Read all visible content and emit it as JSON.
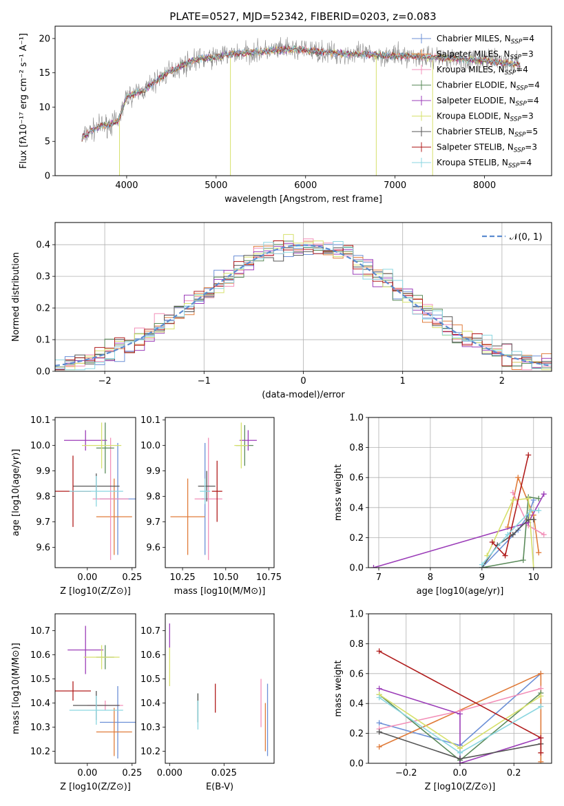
{
  "title": "PLATE=0527, MJD=52342, FIBERID=0203, z=0.083",
  "colors": [
    "#6b8fd6",
    "#e07b39",
    "#f28fb8",
    "#5a8a5a",
    "#9b3cb8",
    "#d6e06b",
    "#555555",
    "#b01c1c",
    "#8ad6e0"
  ],
  "legend": [
    "Chabrier MILES, N_SSP=4",
    "Salpeter MILES, N_SSP=3",
    "Kroupa MILES, N_SSP=4",
    "Chabrier ELODIE, N_SSP=4",
    "Salpeter ELODIE, N_SSP=4",
    "Kroupa ELODIE, N_SSP=3",
    "Chabrier STELIB, N_SSP=5",
    "Salpeter STELIB, N_SSP=3",
    "Kroupa STELIB, N_SSP=4"
  ],
  "chart_data": [
    {
      "id": "spectrum",
      "type": "line",
      "title": "PLATE=0527, MJD=52342, FIBERID=0203, z=0.083",
      "xlabel": "wavelength [Angstrom, rest frame]",
      "ylabel": "Flux [fλ10⁻¹⁷ erg cm⁻² s⁻¹ A⁻¹]",
      "xlim": [
        3200,
        8750
      ],
      "ylim": [
        0,
        21.8
      ],
      "xticks": [
        4000,
        5000,
        6000,
        7000,
        8000
      ],
      "yticks": [
        0,
        5,
        10,
        15,
        20
      ],
      "x": [
        3500,
        3600,
        3700,
        3800,
        3900,
        4000,
        4200,
        4400,
        4600,
        4800,
        5000,
        5200,
        5400,
        5600,
        5800,
        6000,
        6200,
        6400,
        6600,
        6800,
        7000,
        7200,
        7400,
        7600,
        7800,
        8000,
        8200,
        8400
      ],
      "y": [
        5.5,
        6.5,
        7.2,
        7.5,
        7.8,
        11.5,
        12.5,
        14.5,
        16.0,
        17.0,
        17.3,
        17.8,
        18.0,
        18.2,
        18.4,
        18.3,
        18.0,
        17.8,
        17.7,
        17.6,
        17.5,
        17.4,
        17.3,
        17.2,
        16.9,
        16.8,
        16.5,
        16.2
      ],
      "legend_placement": "upper right",
      "series_names": [
        "Chabrier MILES, N_SSP=4",
        "Salpeter MILES, N_SSP=3",
        "Kroupa MILES, N_SSP=4",
        "Chabrier ELODIE, N_SSP=4",
        "Salpeter ELODIE, N_SSP=4",
        "Kroupa ELODIE, N_SSP=3",
        "Chabrier STELIB, N_SSP=5",
        "Salpeter STELIB, N_SSP=3",
        "Kroupa STELIB, N_SSP=4"
      ]
    },
    {
      "id": "residuals",
      "type": "line",
      "xlabel": "(data-model)/error",
      "ylabel": "Normed distribution",
      "xlim": [
        -2.5,
        2.5
      ],
      "ylim": [
        0,
        0.47
      ],
      "xticks": [
        -2,
        -1,
        0,
        1,
        2
      ],
      "xticklabels": [
        "−2",
        "−1",
        "0",
        "1",
        "2"
      ],
      "yticks": [
        0.0,
        0.1,
        0.2,
        0.3,
        0.4
      ],
      "grid": true,
      "legend_label": "𝒩(0, 1)",
      "legend_placement": "upper right",
      "curve": "standard normal"
    },
    {
      "id": "age-vs-Z",
      "type": "scatter",
      "xlabel": "Z [log10(Z/Z⊙)]",
      "ylabel": "age  [log10(age/yr)]",
      "xlim": [
        -0.18,
        0.27
      ],
      "ylim": [
        9.52,
        10.11
      ],
      "xticks": [
        0.0,
        0.25
      ],
      "xticklabels": [
        "0.00",
        "0.25"
      ],
      "yticks": [
        9.6,
        9.7,
        9.8,
        9.9,
        10.0,
        10.1
      ],
      "points": [
        {
          "x": 0.17,
          "y": 9.79,
          "xerr": 0.1,
          "yerr": 0.22
        },
        {
          "x": 0.15,
          "y": 9.72,
          "xerr": 0.1,
          "yerr": 0.15
        },
        {
          "x": 0.13,
          "y": 9.79,
          "xerr": 0.1,
          "yerr": 0.24
        },
        {
          "x": 0.1,
          "y": 9.99,
          "xerr": 0.05,
          "yerr": 0.1
        },
        {
          "x": -0.01,
          "y": 10.02,
          "xerr": 0.12,
          "yerr": 0.04
        },
        {
          "x": 0.08,
          "y": 10.0,
          "xerr": 0.11,
          "yerr": 0.09
        },
        {
          "x": 0.05,
          "y": 9.84,
          "xerr": 0.13,
          "yerr": 0.05
        },
        {
          "x": -0.08,
          "y": 9.82,
          "xerr": 0.1,
          "yerr": 0.14
        },
        {
          "x": 0.05,
          "y": 9.82,
          "xerr": 0.15,
          "yerr": 0.06
        }
      ]
    },
    {
      "id": "age-vs-mass",
      "type": "scatter",
      "xlabel": "mass [log10(M/M⊙)]",
      "ylabel": "",
      "xlim": [
        10.15,
        10.78
      ],
      "ylim": [
        9.52,
        10.11
      ],
      "xticks": [
        10.25,
        10.5,
        10.75
      ],
      "xticklabels": [
        "10.25",
        "10.50",
        "10.75"
      ],
      "yticks": [
        9.6,
        9.7,
        9.8,
        9.9,
        10.0,
        10.1
      ],
      "points": [
        {
          "x": 10.38,
          "y": 9.79,
          "xerr": 0.02,
          "yerr": 0.22
        },
        {
          "x": 10.28,
          "y": 9.72,
          "xerr": 0.1,
          "yerr": 0.15
        },
        {
          "x": 10.4,
          "y": 9.79,
          "xerr": 0.08,
          "yerr": 0.24
        },
        {
          "x": 10.61,
          "y": 10.0,
          "xerr": 0.05,
          "yerr": 0.08
        },
        {
          "x": 10.63,
          "y": 10.02,
          "xerr": 0.05,
          "yerr": 0.04
        },
        {
          "x": 10.59,
          "y": 10.0,
          "xerr": 0.04,
          "yerr": 0.09
        },
        {
          "x": 10.39,
          "y": 9.84,
          "xerr": 0.05,
          "yerr": 0.06
        },
        {
          "x": 10.45,
          "y": 9.82,
          "xerr": 0.03,
          "yerr": 0.12
        },
        {
          "x": 10.38,
          "y": 9.82,
          "xerr": 0.03,
          "yerr": 0.05
        }
      ]
    },
    {
      "id": "weights-vs-age",
      "type": "line",
      "xlabel": "age  [log10(age/yr)]",
      "ylabel": "mass weight",
      "xlim": [
        6.8,
        10.35
      ],
      "ylim": [
        0,
        1.0
      ],
      "xticks": [
        7,
        8,
        9,
        10
      ],
      "yticks": [
        0.0,
        0.2,
        0.4,
        0.6,
        0.8,
        1.0
      ],
      "grid": true,
      "series": [
        {
          "x": [
            9.0,
            9.7,
            9.9,
            10.0
          ],
          "y": [
            0.0,
            0.25,
            0.35,
            0.45
          ]
        },
        {
          "x": [
            9.5,
            9.7,
            10.0,
            10.1
          ],
          "y": [
            0.27,
            0.6,
            0.35,
            0.1
          ]
        },
        {
          "x": [
            9.6,
            9.9,
            10.2
          ],
          "y": [
            0.5,
            0.28,
            0.22
          ]
        },
        {
          "x": [
            9.0,
            9.8,
            9.9,
            10.1
          ],
          "y": [
            0.0,
            0.05,
            0.47,
            0.46
          ]
        },
        {
          "x": [
            6.9,
            9.9,
            10.2
          ],
          "y": [
            0.0,
            0.3,
            0.49
          ]
        },
        {
          "x": [
            9.1,
            9.6,
            9.9,
            10.0
          ],
          "y": [
            0.08,
            0.45,
            0.46,
            0.0
          ]
        },
        {
          "x": [
            9.0,
            9.3,
            9.6,
            9.9,
            10.0
          ],
          "y": [
            0.0,
            0.15,
            0.22,
            0.32,
            0.32
          ]
        },
        {
          "x": [
            9.2,
            9.45,
            9.9
          ],
          "y": [
            0.17,
            0.08,
            0.75
          ]
        },
        {
          "x": [
            9.0,
            9.5,
            9.95,
            10.1
          ],
          "y": [
            0.02,
            0.22,
            0.38,
            0.38
          ]
        }
      ]
    },
    {
      "id": "mass-vs-Z",
      "type": "scatter",
      "xlabel": "Z [log10(Z/Z⊙)]",
      "ylabel": "mass [log10(M/M⊙)]",
      "xlim": [
        -0.18,
        0.27
      ],
      "ylim": [
        10.15,
        10.77
      ],
      "xticks": [
        0.0,
        0.25
      ],
      "xticklabels": [
        "0.00",
        "0.25"
      ],
      "yticks": [
        10.2,
        10.3,
        10.4,
        10.5,
        10.6,
        10.7
      ],
      "points": [
        {
          "x": 0.17,
          "y": 10.32,
          "xerr": 0.1,
          "yerr": 0.15
        },
        {
          "x": 0.15,
          "y": 10.28,
          "xerr": 0.1,
          "yerr": 0.1
        },
        {
          "x": 0.1,
          "y": 10.39,
          "xerr": 0.1,
          "yerr": 0.02
        },
        {
          "x": 0.1,
          "y": 10.59,
          "xerr": 0.05,
          "yerr": 0.05
        },
        {
          "x": -0.01,
          "y": 10.62,
          "xerr": 0.1,
          "yerr": 0.1
        },
        {
          "x": 0.08,
          "y": 10.59,
          "xerr": 0.1,
          "yerr": 0.05
        },
        {
          "x": 0.05,
          "y": 10.39,
          "xerr": 0.13,
          "yerr": 0.06
        },
        {
          "x": -0.08,
          "y": 10.45,
          "xerr": 0.1,
          "yerr": 0.04
        },
        {
          "x": 0.05,
          "y": 10.37,
          "xerr": 0.15,
          "yerr": 0.06
        }
      ]
    },
    {
      "id": "mass-vs-ebv",
      "type": "scatter",
      "xlabel": "E(B-V)",
      "ylabel": "",
      "xlim": [
        -0.002,
        0.048
      ],
      "ylim": [
        10.15,
        10.77
      ],
      "xticks": [
        0.0,
        0.025
      ],
      "xticklabels": [
        "0.000",
        "0.025"
      ],
      "yticks": [
        10.2,
        10.3,
        10.4,
        10.5,
        10.6,
        10.7
      ],
      "points": [
        {
          "x": 0.045,
          "y": 10.33,
          "yerr": 0.15
        },
        {
          "x": 0.044,
          "y": 10.3,
          "yerr": 0.1
        },
        {
          "x": 0.042,
          "y": 10.4,
          "yerr": 0.1
        },
        {
          "x": 0.013,
          "y": 10.38,
          "yerr": 0.06
        },
        {
          "x": 0.0,
          "y": 10.68,
          "yerr": 0.05
        },
        {
          "x": 0.0,
          "y": 10.55,
          "yerr": 0.08
        },
        {
          "x": 0.013,
          "y": 10.38,
          "yerr": 0.06
        },
        {
          "x": 0.021,
          "y": 10.42,
          "yerr": 0.06
        },
        {
          "x": 0.013,
          "y": 10.35,
          "yerr": 0.06
        }
      ]
    },
    {
      "id": "weights-vs-Z",
      "type": "line",
      "xlabel": "Z [log10(Z/Z⊙)]",
      "ylabel": "mass weight",
      "xlim": [
        -0.34,
        0.34
      ],
      "ylim": [
        0,
        1.0
      ],
      "xticks": [
        -0.2,
        0.0,
        0.2
      ],
      "xticklabels": [
        "−0.2",
        "0.0",
        "0.2"
      ],
      "yticks": [
        0.0,
        0.2,
        0.4,
        0.6,
        0.8,
        1.0
      ],
      "grid": true,
      "series": [
        {
          "x": [
            -0.3,
            0.0,
            0.3
          ],
          "y": [
            0.27,
            0.12,
            0.6
          ]
        },
        {
          "x": [
            -0.3,
            0.3,
            0.3
          ],
          "y": [
            0.11,
            0.6,
            0.01
          ]
        },
        {
          "x": [
            -0.3,
            0.0,
            0.3
          ],
          "y": [
            0.23,
            0.35,
            0.5
          ]
        },
        {
          "x": [
            -0.3,
            0.0,
            0.3
          ],
          "y": [
            0.46,
            0.02,
            0.47
          ]
        },
        {
          "x": [
            -0.3,
            0.0,
            0.0,
            0.3
          ],
          "y": [
            0.5,
            0.33,
            0.0,
            0.17
          ]
        },
        {
          "x": [
            -0.3,
            0.0,
            0.3
          ],
          "y": [
            0.46,
            0.1,
            0.45
          ]
        },
        {
          "x": [
            -0.3,
            0.0,
            0.3
          ],
          "y": [
            0.21,
            0.03,
            0.13
          ]
        },
        {
          "x": [
            -0.3,
            0.3,
            0.3
          ],
          "y": [
            0.75,
            0.17,
            0.07
          ]
        },
        {
          "x": [
            -0.3,
            0.0,
            0.3
          ],
          "y": [
            0.44,
            0.07,
            0.38
          ]
        }
      ]
    }
  ]
}
